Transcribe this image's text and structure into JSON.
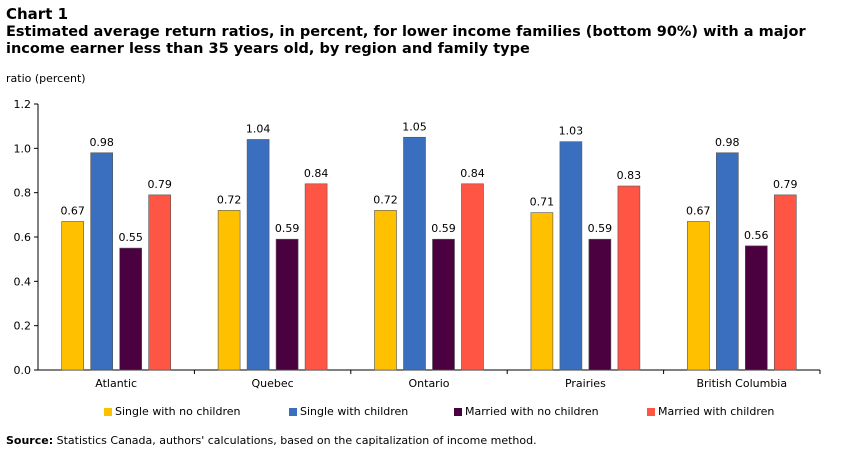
{
  "chart_label": "Chart 1",
  "source_label": "Source:",
  "source_text": "Statistics Canada, authors' calculations, based on the capitalization of income method.",
  "chart_data": {
    "type": "bar",
    "title": "Estimated average return ratios, in percent, for lower income families (bottom 90%) with a major income earner less than 35 years old, by region and family type",
    "ylabel": "ratio (percent)",
    "xlabel": "",
    "ylim": [
      0,
      1.2
    ],
    "yticks": [
      "0.0",
      "0.2",
      "0.4",
      "0.6",
      "0.8",
      "1.0",
      "1.2"
    ],
    "categories": [
      "Atlantic",
      "Quebec",
      "Ontario",
      "Prairies",
      "British Columbia"
    ],
    "series": [
      {
        "name": "Single with no children",
        "color": "#FFC000",
        "values": [
          0.67,
          0.72,
          0.72,
          0.71,
          0.67
        ],
        "labels": [
          "0.67",
          "0.72",
          "0.72",
          "0.71",
          "0.67"
        ]
      },
      {
        "name": "Single with children",
        "color": "#3A6FBF",
        "values": [
          0.98,
          1.04,
          1.05,
          1.03,
          0.98
        ],
        "labels": [
          "0.98",
          "1.04",
          "1.05",
          "1.03",
          "0.98"
        ]
      },
      {
        "name": "Married with no children",
        "color": "#4B0040",
        "values": [
          0.55,
          0.59,
          0.59,
          0.59,
          0.56
        ],
        "labels": [
          "0.55",
          "0.59",
          "0.59",
          "0.59",
          "0.56"
        ]
      },
      {
        "name": "Married with children",
        "color": "#FF5545",
        "values": [
          0.79,
          0.84,
          0.84,
          0.83,
          0.79
        ],
        "labels": [
          "0.79",
          "0.84",
          "0.84",
          "0.83",
          "0.79"
        ]
      }
    ],
    "grid": false,
    "legend_position": "bottom"
  }
}
